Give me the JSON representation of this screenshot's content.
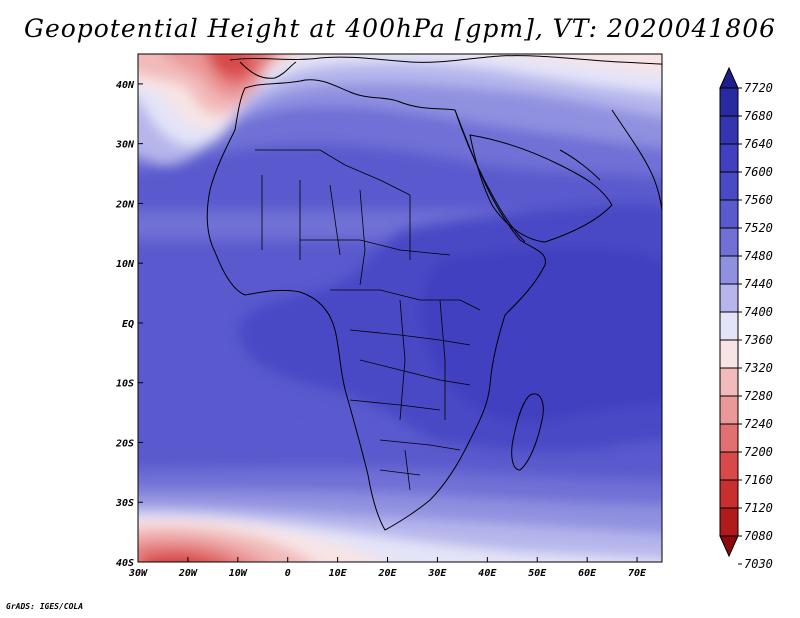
{
  "title": "Geopotential Height at 400hPa [gpm], VT: 2020041806",
  "credit": "GrADS: IGES/COLA",
  "chart_data": {
    "type": "heatmap",
    "field": "Geopotential Height at 400hPa",
    "units": "gpm",
    "valid_time": "2020041806",
    "lon_range": [
      -30,
      75
    ],
    "lat_range": [
      -40,
      45
    ],
    "lon_ticks": [
      "30W",
      "20W",
      "10W",
      "0",
      "10E",
      "20E",
      "30E",
      "40E",
      "50E",
      "60E",
      "70E"
    ],
    "lat_ticks": [
      "40S",
      "30S",
      "20S",
      "10S",
      "EQ",
      "10N",
      "20N",
      "30N",
      "40N"
    ],
    "colorbar": {
      "levels": [
        7720,
        7680,
        7640,
        7600,
        7560,
        7520,
        7480,
        7440,
        7400,
        7360,
        7320,
        7280,
        7240,
        7200,
        7160,
        7120,
        7080,
        7030
      ],
      "colors": [
        "#1e1e8c",
        "#2a2aa0",
        "#3535b0",
        "#4040c0",
        "#4a4ac6",
        "#5a5ace",
        "#7070d6",
        "#9090e0",
        "#b6b6ec",
        "#e4e4f8",
        "#f8e4e4",
        "#f2baba",
        "#ea9898",
        "#e27070",
        "#d84a4a",
        "#c83030",
        "#b01c1c",
        "#8c0a0a"
      ]
    }
  }
}
